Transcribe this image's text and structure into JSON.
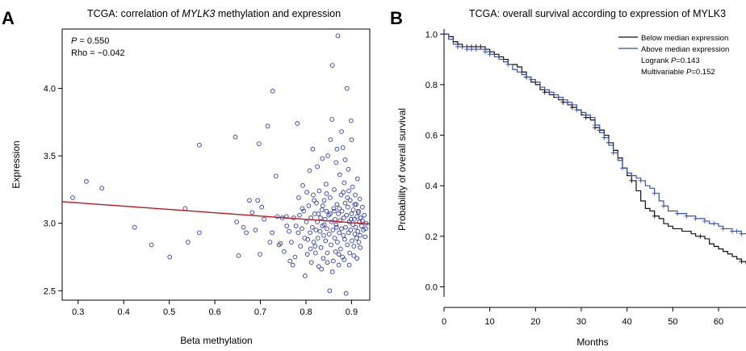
{
  "chart_data": [
    {
      "panel_label": "A",
      "type": "scatter",
      "title": "TCGA: correlation of MYLK3 methylation and expression",
      "title_parts": [
        "TCGA: correlation of ",
        "MYLK3",
        " methylation and expression"
      ],
      "xlabel": "Beta methylation",
      "ylabel": "Expression",
      "xlim": [
        0.265,
        0.94
      ],
      "ylim": [
        2.43,
        4.44
      ],
      "xticks": [
        0.3,
        0.4,
        0.5,
        0.6,
        0.7,
        0.8,
        0.9
      ],
      "yticks": [
        2.5,
        3.0,
        3.5,
        4.0
      ],
      "xtick_labels": [
        "0.3",
        "0.4",
        "0.5",
        "0.6",
        "0.7",
        "0.8",
        "0.9"
      ],
      "ytick_labels": [
        "2.5",
        "3.0",
        "3.5",
        "4.0"
      ],
      "annotations": [
        {
          "label": "P",
          "value": " = 0.550"
        },
        {
          "label": "Rho",
          "value": " = −0.042"
        }
      ],
      "regression_line": {
        "x": [
          0.265,
          0.94
        ],
        "y": [
          3.16,
          2.995
        ],
        "color": "#c0141c"
      },
      "point_color": "#2b3aa8",
      "points": [
        [
          0.288,
          3.19
        ],
        [
          0.318,
          3.31
        ],
        [
          0.352,
          3.26
        ],
        [
          0.424,
          2.97
        ],
        [
          0.461,
          2.84
        ],
        [
          0.501,
          2.75
        ],
        [
          0.535,
          3.11
        ],
        [
          0.541,
          2.86
        ],
        [
          0.566,
          3.58
        ],
        [
          0.566,
          2.93
        ],
        [
          0.645,
          3.64
        ],
        [
          0.648,
          3.01
        ],
        [
          0.652,
          2.76
        ],
        [
          0.663,
          2.97
        ],
        [
          0.669,
          2.93
        ],
        [
          0.676,
          3.17
        ],
        [
          0.682,
          3.08
        ],
        [
          0.689,
          2.95
        ],
        [
          0.694,
          3.17
        ],
        [
          0.697,
          3.59
        ],
        [
          0.699,
          2.77
        ],
        [
          0.703,
          3.12
        ],
        [
          0.708,
          3.03
        ],
        [
          0.716,
          3.72
        ],
        [
          0.721,
          2.86
        ],
        [
          0.726,
          2.93
        ],
        [
          0.727,
          3.98
        ],
        [
          0.734,
          3.35
        ],
        [
          0.737,
          3.05
        ],
        [
          0.741,
          2.84
        ],
        [
          0.744,
          2.85
        ],
        [
          0.748,
          3.04
        ],
        [
          0.752,
          2.79
        ],
        [
          0.757,
          3.05
        ],
        [
          0.758,
          2.98
        ],
        [
          0.763,
          2.94
        ],
        [
          0.765,
          2.72
        ],
        [
          0.768,
          2.86
        ],
        [
          0.771,
          2.69
        ],
        [
          0.773,
          3.04
        ],
        [
          0.776,
          2.75
        ],
        [
          0.778,
          2.98
        ],
        [
          0.781,
          3.74
        ],
        [
          0.783,
          2.93
        ],
        [
          0.786,
          3.06
        ],
        [
          0.788,
          2.83
        ],
        [
          0.791,
          2.96
        ],
        [
          0.793,
          3.28
        ],
        [
          0.795,
          3.09
        ],
        [
          0.797,
          2.89
        ],
        [
          0.798,
          2.61
        ],
        [
          0.801,
          3.01
        ],
        [
          0.803,
          2.77
        ],
        [
          0.804,
          2.88
        ],
        [
          0.806,
          3.13
        ],
        [
          0.808,
          3.39
        ],
        [
          0.809,
          2.93
        ],
        [
          0.811,
          3.04
        ],
        [
          0.812,
          2.71
        ],
        [
          0.814,
          2.97
        ],
        [
          0.816,
          3.21
        ],
        [
          0.817,
          2.86
        ],
        [
          0.819,
          3.07
        ],
        [
          0.821,
          2.78
        ],
        [
          0.822,
          2.95
        ],
        [
          0.823,
          3.15
        ],
        [
          0.825,
          3.01
        ],
        [
          0.826,
          2.89
        ],
        [
          0.828,
          2.68
        ],
        [
          0.829,
          3.24
        ],
        [
          0.831,
          2.94
        ],
        [
          0.832,
          3.04
        ],
        [
          0.833,
          2.82
        ],
        [
          0.835,
          3.1
        ],
        [
          0.836,
          2.98
        ],
        [
          0.838,
          2.74
        ],
        [
          0.839,
          2.91
        ],
        [
          0.84,
          3.17
        ],
        [
          0.842,
          3.03
        ],
        [
          0.843,
          2.87
        ],
        [
          0.844,
          3.29
        ],
        [
          0.846,
          2.96
        ],
        [
          0.847,
          2.78
        ],
        [
          0.848,
          3.5
        ],
        [
          0.85,
          3.06
        ],
        [
          0.851,
          2.92
        ],
        [
          0.852,
          2.5
        ],
        [
          0.853,
          3.19
        ],
        [
          0.855,
          2.84
        ],
        [
          0.856,
          3.01
        ],
        [
          0.857,
          3.77
        ],
        [
          0.858,
          4.17
        ],
        [
          0.859,
          2.95
        ],
        [
          0.86,
          2.72
        ],
        [
          0.861,
          3.11
        ],
        [
          0.862,
          3.25
        ],
        [
          0.863,
          2.89
        ],
        [
          0.864,
          3.03
        ],
        [
          0.865,
          2.79
        ],
        [
          0.866,
          3.45
        ],
        [
          0.867,
          2.97
        ],
        [
          0.868,
          3.14
        ],
        [
          0.869,
          2.86
        ],
        [
          0.87,
          4.39
        ],
        [
          0.871,
          3.07
        ],
        [
          0.872,
          2.69
        ],
        [
          0.873,
          2.93
        ],
        [
          0.874,
          3.36
        ],
        [
          0.875,
          3.02
        ],
        [
          0.876,
          2.81
        ],
        [
          0.877,
          3.21
        ],
        [
          0.878,
          2.96
        ],
        [
          0.879,
          3.09
        ],
        [
          0.88,
          2.75
        ],
        [
          0.881,
          3.56
        ],
        [
          0.882,
          2.91
        ],
        [
          0.883,
          3.04
        ],
        [
          0.884,
          3.3
        ],
        [
          0.885,
          2.88
        ],
        [
          0.886,
          3.15
        ],
        [
          0.887,
          2.97
        ],
        [
          0.888,
          2.48
        ],
        [
          0.889,
          3.06
        ],
        [
          0.89,
          4.0
        ],
        [
          0.891,
          2.84
        ],
        [
          0.892,
          3.12
        ],
        [
          0.893,
          2.93
        ],
        [
          0.894,
          3.24
        ],
        [
          0.895,
          3.01
        ],
        [
          0.896,
          2.78
        ],
        [
          0.897,
          3.17
        ],
        [
          0.898,
          2.95
        ],
        [
          0.899,
          3.76
        ],
        [
          0.9,
          3.07
        ],
        [
          0.901,
          2.87
        ],
        [
          0.902,
          3.27
        ],
        [
          0.903,
          2.99
        ],
        [
          0.904,
          3.1
        ],
        [
          0.905,
          2.83
        ],
        [
          0.906,
          3.03
        ],
        [
          0.907,
          2.92
        ],
        [
          0.908,
          3.21
        ],
        [
          0.909,
          2.97
        ],
        [
          0.91,
          3.14
        ],
        [
          0.911,
          2.89
        ],
        [
          0.912,
          3.05
        ],
        [
          0.913,
          3.33
        ],
        [
          0.914,
          2.94
        ],
        [
          0.915,
          3.08
        ],
        [
          0.916,
          2.86
        ],
        [
          0.917,
          3.01
        ],
        [
          0.918,
          3.18
        ],
        [
          0.919,
          2.91
        ],
        [
          0.92,
          3.04
        ],
        [
          0.922,
          2.98
        ],
        [
          0.924,
          3.12
        ],
        [
          0.926,
          2.95
        ],
        [
          0.928,
          3.06
        ],
        [
          0.93,
          2.9
        ],
        [
          0.932,
          3.0
        ],
        [
          0.815,
          3.55
        ],
        [
          0.825,
          3.42
        ],
        [
          0.836,
          3.48
        ],
        [
          0.845,
          3.22
        ],
        [
          0.854,
          3.62
        ],
        [
          0.868,
          3.55
        ],
        [
          0.878,
          3.68
        ],
        [
          0.886,
          3.47
        ],
        [
          0.893,
          3.4
        ],
        [
          0.9,
          3.62
        ],
        [
          0.82,
          2.83
        ],
        [
          0.834,
          2.66
        ],
        [
          0.847,
          2.71
        ],
        [
          0.858,
          2.64
        ],
        [
          0.872,
          2.77
        ],
        [
          0.884,
          2.73
        ],
        [
          0.895,
          2.69
        ],
        [
          0.905,
          2.76
        ],
        [
          0.912,
          2.74
        ],
        [
          0.919,
          2.82
        ],
        [
          0.784,
          3.19
        ],
        [
          0.792,
          3.11
        ],
        [
          0.802,
          3.23
        ],
        [
          0.81,
          2.81
        ],
        [
          0.818,
          3.17
        ],
        [
          0.827,
          3.07
        ],
        [
          0.837,
          3.13
        ],
        [
          0.845,
          3.09
        ],
        [
          0.853,
          3.07
        ],
        [
          0.862,
          3.09
        ],
        [
          0.873,
          3.11
        ],
        [
          0.882,
          3.23
        ],
        [
          0.891,
          3.19
        ],
        [
          0.899,
          3.03
        ],
        [
          0.907,
          3.14
        ],
        [
          0.915,
          3.09
        ],
        [
          0.924,
          3.02
        ],
        [
          0.931,
          2.96
        ],
        [
          0.84,
          2.99
        ],
        [
          0.866,
          2.99
        ]
      ]
    },
    {
      "panel_label": "B",
      "type": "line",
      "title": "TCGA: overall survival according to expression of MYLK3",
      "xlabel": "Months",
      "ylabel": "Probability of overall survival",
      "xlim": [
        0,
        66
      ],
      "ylim": [
        -0.04,
        1.02
      ],
      "xticks": [
        0,
        10,
        20,
        30,
        40,
        50,
        60
      ],
      "yticks": [
        0.0,
        0.2,
        0.4,
        0.6,
        0.8,
        1.0
      ],
      "xtick_labels": [
        "0",
        "10",
        "20",
        "30",
        "40",
        "50",
        "60"
      ],
      "ytick_labels": [
        "0.0",
        "0.2",
        "0.4",
        "0.6",
        "0.8",
        "1.0"
      ],
      "legend_position": "top-right",
      "legend_text": [
        {
          "label": "",
          "value": "Logrank "
        },
        {
          "label": "P",
          "value": "=0.143"
        },
        {
          "label": "",
          "value": "Multivariable "
        },
        {
          "label": "P",
          "value": "=0.152"
        }
      ],
      "annotations": [
        {
          "prefix": "Logrank ",
          "label": "P",
          "value": "=0.143"
        },
        {
          "prefix": "Multivariable ",
          "label": "P",
          "value": "=0.152"
        }
      ],
      "series": [
        {
          "name": "Below median expression",
          "color": "#111111",
          "x": [
            0,
            1,
            2,
            3,
            4,
            5,
            6,
            7,
            8,
            9,
            10,
            11,
            12,
            13,
            14,
            15,
            16,
            17,
            18,
            19,
            20,
            21,
            22,
            23,
            24,
            25,
            26,
            27,
            28,
            29,
            30,
            31,
            32,
            33,
            34,
            35,
            36,
            37,
            38,
            39,
            40,
            41,
            42,
            43,
            44,
            45,
            46,
            47,
            48,
            49,
            50,
            51,
            52,
            53,
            54,
            55,
            56,
            57,
            58,
            59,
            60,
            61,
            62,
            63,
            64,
            65,
            66
          ],
          "y": [
            1.0,
            0.99,
            0.97,
            0.96,
            0.95,
            0.95,
            0.95,
            0.95,
            0.95,
            0.94,
            0.93,
            0.92,
            0.91,
            0.9,
            0.88,
            0.88,
            0.87,
            0.85,
            0.83,
            0.81,
            0.8,
            0.78,
            0.77,
            0.76,
            0.75,
            0.74,
            0.73,
            0.72,
            0.71,
            0.7,
            0.68,
            0.67,
            0.66,
            0.63,
            0.62,
            0.6,
            0.57,
            0.54,
            0.51,
            0.47,
            0.44,
            0.42,
            0.38,
            0.34,
            0.31,
            0.3,
            0.28,
            0.27,
            0.25,
            0.24,
            0.23,
            0.23,
            0.22,
            0.22,
            0.21,
            0.2,
            0.2,
            0.19,
            0.17,
            0.16,
            0.15,
            0.14,
            0.13,
            0.12,
            0.11,
            0.1,
            0.09
          ],
          "censored_x": [
            3,
            4,
            5,
            6,
            7,
            8,
            9,
            12,
            18,
            22,
            26,
            28,
            31,
            33,
            34,
            36,
            41,
            46,
            56,
            65
          ]
        },
        {
          "name": "Above median expression",
          "color": "#3450b0",
          "x": [
            0,
            1,
            2,
            3,
            4,
            5,
            6,
            7,
            8,
            9,
            10,
            11,
            12,
            13,
            14,
            15,
            16,
            17,
            18,
            19,
            20,
            21,
            22,
            23,
            24,
            25,
            26,
            27,
            28,
            29,
            30,
            31,
            32,
            33,
            34,
            35,
            36,
            37,
            38,
            39,
            40,
            41,
            42,
            43,
            44,
            45,
            46,
            47,
            48,
            49,
            50,
            51,
            52,
            53,
            54,
            55,
            56,
            57,
            58,
            59,
            60,
            61,
            62,
            63,
            64,
            65,
            66
          ],
          "y": [
            1.0,
            0.98,
            0.96,
            0.95,
            0.95,
            0.94,
            0.94,
            0.94,
            0.94,
            0.93,
            0.92,
            0.91,
            0.9,
            0.89,
            0.88,
            0.86,
            0.85,
            0.84,
            0.83,
            0.82,
            0.81,
            0.79,
            0.78,
            0.77,
            0.76,
            0.75,
            0.74,
            0.73,
            0.72,
            0.7,
            0.69,
            0.68,
            0.67,
            0.64,
            0.61,
            0.59,
            0.56,
            0.53,
            0.5,
            0.47,
            0.45,
            0.44,
            0.43,
            0.42,
            0.4,
            0.39,
            0.37,
            0.34,
            0.32,
            0.3,
            0.3,
            0.29,
            0.29,
            0.28,
            0.28,
            0.27,
            0.27,
            0.26,
            0.25,
            0.25,
            0.24,
            0.23,
            0.23,
            0.22,
            0.22,
            0.21,
            0.21
          ],
          "censored_x": [
            3,
            5,
            6,
            7,
            9,
            10,
            14,
            19,
            23,
            25,
            27,
            29,
            31,
            33,
            35,
            37,
            39,
            41,
            43,
            46,
            48,
            51,
            53,
            55,
            57,
            59,
            61,
            63,
            64,
            65
          ]
        }
      ]
    }
  ]
}
